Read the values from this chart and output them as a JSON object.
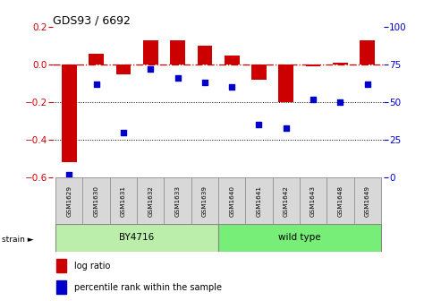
{
  "title": "GDS93 / 6692",
  "samples": [
    "GSM1629",
    "GSM1630",
    "GSM1631",
    "GSM1632",
    "GSM1633",
    "GSM1639",
    "GSM1640",
    "GSM1641",
    "GSM1642",
    "GSM1643",
    "GSM1648",
    "GSM1649"
  ],
  "log_ratio": [
    -0.52,
    0.06,
    -0.05,
    0.13,
    0.13,
    0.1,
    0.05,
    -0.08,
    -0.2,
    -0.01,
    0.01,
    0.13
  ],
  "percentile": [
    2,
    62,
    30,
    72,
    66,
    63,
    60,
    35,
    33,
    52,
    50,
    62
  ],
  "bar_color": "#cc0000",
  "dot_color": "#0000cc",
  "ref_line_color": "#cc0000",
  "ylim_left": [
    -0.6,
    0.2
  ],
  "ylim_right": [
    0,
    100
  ],
  "left_yticks": [
    -0.6,
    -0.4,
    -0.2,
    0.0,
    0.2
  ],
  "right_yticks": [
    0,
    25,
    50,
    75,
    100
  ],
  "strain_groups": [
    {
      "label": "BY4716",
      "start": 0,
      "end": 5,
      "color": "#bbeeaa"
    },
    {
      "label": "wild type",
      "start": 6,
      "end": 11,
      "color": "#77ee77"
    }
  ],
  "strain_label": "strain ►",
  "legend_bar_label": "log ratio",
  "legend_dot_label": "percentile rank within the sample",
  "bg_color": "#ffffff",
  "tick_label_color_left": "#cc0000",
  "tick_label_color_right": "#0000cc",
  "sample_box_color": "#d8d8d8"
}
